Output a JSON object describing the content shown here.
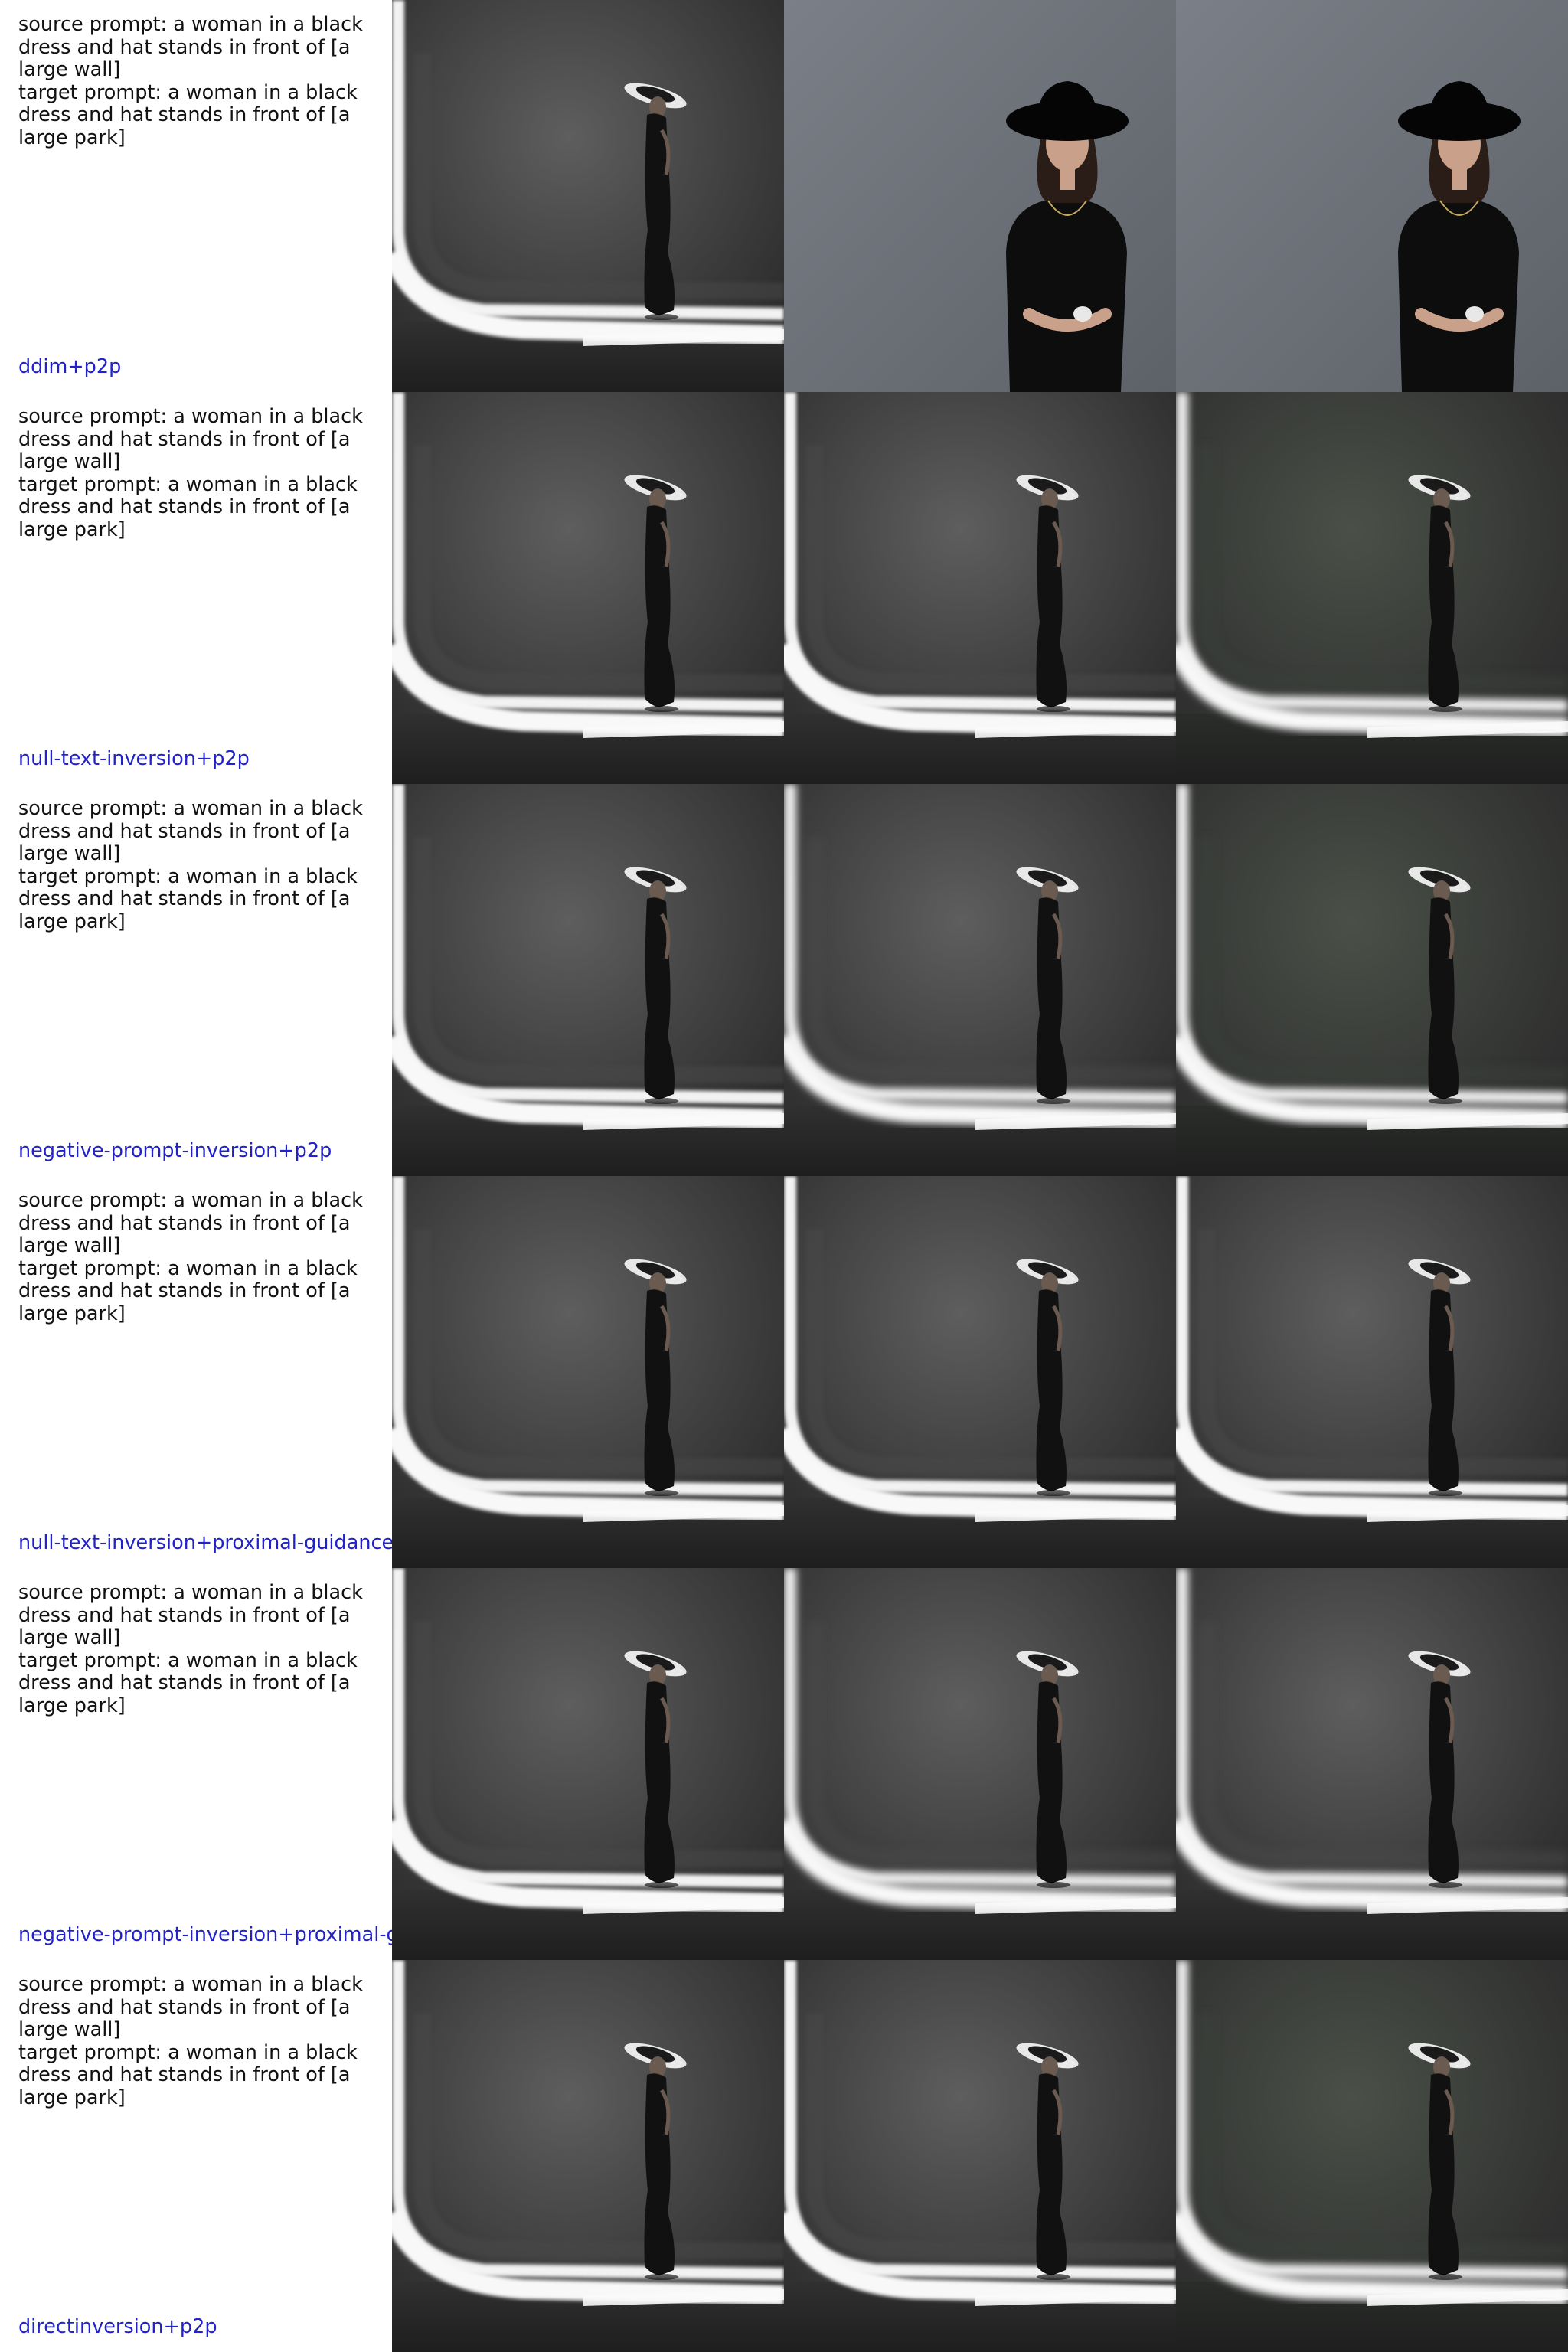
{
  "rows": [
    {
      "prompt_text": "source prompt: a woman in a black\ndress and hat stands in front of [a\nlarge wall]\ntarget prompt: a woman in a black\ndress and hat stands in front of [a\nlarge park]",
      "method": "ddim+p2p",
      "images": [
        "wall-silhouette",
        "portrait-grey-wall",
        "portrait-grey-wall"
      ]
    },
    {
      "prompt_text": "source prompt: a woman in a black\ndress and hat stands in front of [a\nlarge wall]\ntarget prompt: a woman in a black\ndress and hat stands in front of [a\nlarge park]",
      "method": "null-text-inversion+p2p",
      "images": [
        "wall-silhouette",
        "wall-silhouette",
        "wall-silhouette-green"
      ]
    },
    {
      "prompt_text": "source prompt: a woman in a black\ndress and hat stands in front of [a\nlarge wall]\ntarget prompt: a woman in a black\ndress and hat stands in front of [a\nlarge park]",
      "method": "negative-prompt-inversion+p2p",
      "images": [
        "wall-silhouette",
        "wall-silhouette-blur",
        "wall-silhouette-green"
      ]
    },
    {
      "prompt_text": "source prompt: a woman in a black\ndress and hat stands in front of [a\nlarge wall]\ntarget prompt: a woman in a black\ndress and hat stands in front of [a\nlarge park]",
      "method": "null-text-inversion+proximal-guidance",
      "images": [
        "wall-silhouette",
        "wall-silhouette",
        "wall-silhouette"
      ]
    },
    {
      "prompt_text": "source prompt: a woman in a black\ndress and hat stands in front of [a\nlarge wall]\ntarget prompt: a woman in a black\ndress and hat stands in front of [a\nlarge park]",
      "method": "negative-prompt-inversion+proximal-g",
      "images": [
        "wall-silhouette",
        "wall-silhouette-blur",
        "wall-silhouette-blur"
      ]
    },
    {
      "prompt_text": "source prompt: a woman in a black\ndress and hat stands in front of [a\nlarge wall]\ntarget prompt: a woman in a black\ndress and hat stands in front of [a\nlarge park]",
      "method": "directinversion+p2p",
      "images": [
        "wall-silhouette",
        "wall-silhouette",
        "wall-silhouette-green"
      ]
    }
  ]
}
